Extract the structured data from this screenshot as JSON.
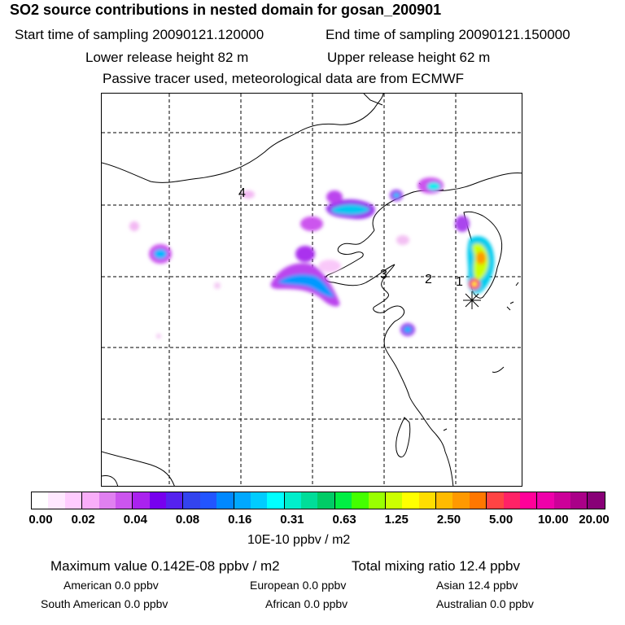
{
  "header": {
    "title": "SO2 source contributions in nested domain for gosan_200901",
    "start_label": "Start time of sampling 20090121.120000",
    "end_label": "End time of sampling 20090121.150000",
    "lower_height": "Lower release height   82 m",
    "upper_height": "Upper release height   62 m",
    "tracer_note": "Passive tracer used, meteorological data are from ECMWF"
  },
  "map": {
    "labels": [
      "4",
      "3",
      "2",
      "1"
    ]
  },
  "colorbar": {
    "ticks": [
      "0.00",
      "0.02",
      "0.04",
      "0.08",
      "0.16",
      "0.31",
      "0.63",
      "1.25",
      "2.50",
      "5.00",
      "10.00",
      "20.00"
    ],
    "unit": "10E-10 ppbv / m2",
    "colors": [
      "#ffffff",
      "#ffe8ff",
      "#ffccff",
      "#f9aef9",
      "#e080f0",
      "#cc55ee",
      "#aa22ee",
      "#7700ee",
      "#5522ee",
      "#3344ee",
      "#2255ff",
      "#0088ff",
      "#00a8ff",
      "#00ccff",
      "#00ffff",
      "#00eecc",
      "#00dd99",
      "#00cc66",
      "#00ee44",
      "#44ff00",
      "#99ff00",
      "#ccff00",
      "#ffff00",
      "#ffdd00",
      "#ffbb00",
      "#ff9900",
      "#ff7700",
      "#ff4444",
      "#ff2266",
      "#ff0099",
      "#ee00aa",
      "#cc0099",
      "#aa0088",
      "#880077"
    ]
  },
  "stats": {
    "max_value": "Maximum value  0.142E-08 ppbv / m2",
    "total_mixing": "Total mixing ratio       12.4 ppbv",
    "american": "American        0.0 ppbv",
    "european": "European       0.0 ppbv",
    "asian": "Asian      12.4 ppbv",
    "south_american": "South American        0.0 ppbv",
    "african": "African        0.0 ppbv",
    "australian": "Australian        0.0 ppbv"
  }
}
